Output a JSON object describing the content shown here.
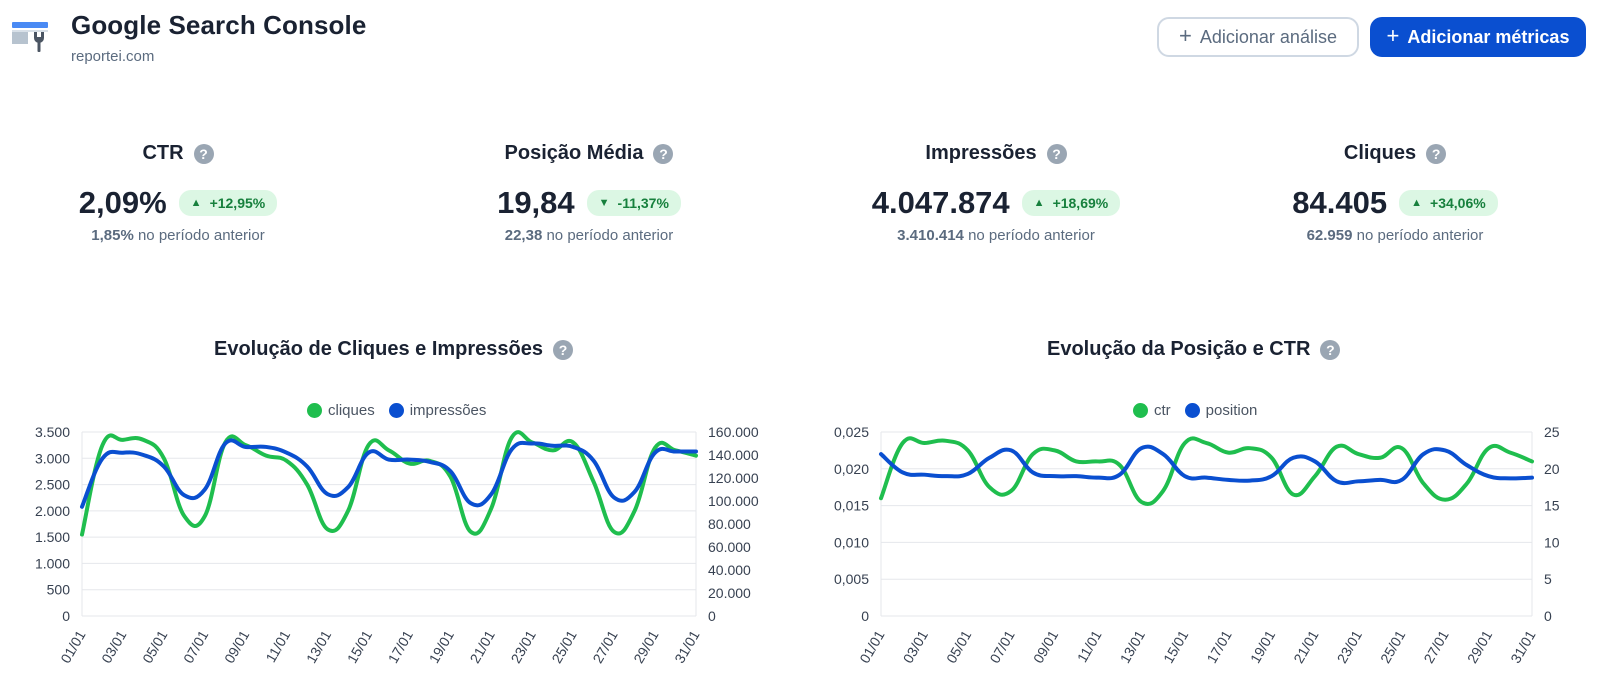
{
  "header": {
    "title": "Google Search Console",
    "subtitle": "reportei.com",
    "btn_analysis": "Adicionar análise",
    "btn_metrics": "Adicionar métricas",
    "plus": "+"
  },
  "help_glyph": "?",
  "kpis": [
    {
      "title": "CTR",
      "value": "2,09%",
      "delta": "+12,95%",
      "direction": "up",
      "prev_value": "1,85%",
      "prev_label": "no período anterior"
    },
    {
      "title": "Posição Média",
      "value": "19,84",
      "delta": "-11,37%",
      "direction": "down",
      "prev_value": "22,38",
      "prev_label": "no período anterior"
    },
    {
      "title": "Impressões",
      "value": "4.047.874",
      "delta": "+18,69%",
      "direction": "up",
      "prev_value": "3.410.414",
      "prev_label": "no período anterior"
    },
    {
      "title": "Cliques",
      "value": "84.405",
      "delta": "+34,06%",
      "direction": "up",
      "prev_value": "62.959",
      "prev_label": "no período anterior"
    }
  ],
  "arrows": {
    "up": "▲",
    "down": "▼"
  },
  "colors": {
    "green": "#1fbe4e",
    "blue": "#0a4fd0",
    "primary": "#0a4fd0",
    "badge_bg": "#dcf7e4",
    "badge_fg": "#17803d"
  },
  "chart_data": [
    {
      "type": "line",
      "title": "Evolução de Cliques e Impressões",
      "legend_position": "top-center",
      "grid": true,
      "x": [
        "01/01",
        "02/01",
        "03/01",
        "04/01",
        "05/01",
        "06/01",
        "07/01",
        "08/01",
        "09/01",
        "10/01",
        "11/01",
        "12/01",
        "13/01",
        "14/01",
        "15/01",
        "16/01",
        "17/01",
        "18/01",
        "19/01",
        "20/01",
        "21/01",
        "22/01",
        "23/01",
        "24/01",
        "25/01",
        "26/01",
        "27/01",
        "28/01",
        "29/01",
        "30/01",
        "31/01"
      ],
      "x_tick_labels": [
        "01/01",
        "03/01",
        "05/01",
        "07/01",
        "09/01",
        "11/01",
        "13/01",
        "15/01",
        "17/01",
        "19/01",
        "21/01",
        "23/01",
        "25/01",
        "27/01",
        "29/01",
        "31/01"
      ],
      "y_left": {
        "min": 0,
        "max": 3500,
        "ticks": [
          "0",
          "500",
          "1.000",
          "1.500",
          "2.000",
          "2.500",
          "3.000",
          "3.500"
        ],
        "tick_values": [
          0,
          500,
          1000,
          1500,
          2000,
          2500,
          3000,
          3500
        ]
      },
      "y_right": {
        "min": 0,
        "max": 160000,
        "ticks": [
          "0",
          "20.000",
          "40.000",
          "60.000",
          "80.000",
          "100.000",
          "120.000",
          "140.000",
          "160.000"
        ],
        "tick_values": [
          0,
          20000,
          40000,
          60000,
          80000,
          100000,
          120000,
          140000,
          160000
        ]
      },
      "series": [
        {
          "name": "cliques",
          "axis": "left",
          "color": "#1fbe4e",
          "values": [
            1550,
            3250,
            3350,
            3350,
            3000,
            1900,
            1900,
            3300,
            3250,
            3050,
            2950,
            2500,
            1650,
            2000,
            3250,
            3150,
            2900,
            2950,
            2650,
            1600,
            2050,
            3400,
            3300,
            3150,
            3300,
            2550,
            1600,
            2000,
            3200,
            3150,
            3050
          ]
        },
        {
          "name": "impressões",
          "axis": "right",
          "color": "#0a4fd0",
          "values": [
            95000,
            137000,
            142000,
            140000,
            130000,
            105000,
            110000,
            150000,
            147000,
            147000,
            142000,
            130000,
            106000,
            112000,
            142000,
            136000,
            136000,
            134000,
            126000,
            98000,
            106000,
            145000,
            150000,
            148000,
            147000,
            135000,
            103000,
            108000,
            142000,
            143000,
            143000
          ]
        }
      ]
    },
    {
      "type": "line",
      "title": "Evolução da Posição e CTR",
      "legend_position": "top-center",
      "grid": true,
      "x": [
        "01/01",
        "02/01",
        "03/01",
        "04/01",
        "05/01",
        "06/01",
        "07/01",
        "08/01",
        "09/01",
        "10/01",
        "11/01",
        "12/01",
        "13/01",
        "14/01",
        "15/01",
        "16/01",
        "17/01",
        "18/01",
        "19/01",
        "20/01",
        "21/01",
        "22/01",
        "23/01",
        "24/01",
        "25/01",
        "26/01",
        "27/01",
        "28/01",
        "29/01",
        "30/01",
        "31/01"
      ],
      "x_tick_labels": [
        "01/01",
        "03/01",
        "05/01",
        "07/01",
        "09/01",
        "11/01",
        "13/01",
        "15/01",
        "17/01",
        "19/01",
        "21/01",
        "23/01",
        "25/01",
        "27/01",
        "29/01",
        "31/01"
      ],
      "y_left": {
        "min": 0,
        "max": 0.025,
        "ticks": [
          "0",
          "0,005",
          "0,010",
          "0,015",
          "0,020",
          "0,025"
        ],
        "tick_values": [
          0,
          0.005,
          0.01,
          0.015,
          0.02,
          0.025
        ]
      },
      "y_right": {
        "min": 0,
        "max": 25,
        "ticks": [
          "0",
          "5",
          "10",
          "15",
          "20",
          "25"
        ],
        "tick_values": [
          0,
          5,
          10,
          15,
          20,
          25
        ]
      },
      "series": [
        {
          "name": "ctr",
          "axis": "left",
          "color": "#1fbe4e",
          "values": [
            0.016,
            0.0235,
            0.0235,
            0.0238,
            0.0225,
            0.0175,
            0.017,
            0.022,
            0.0225,
            0.021,
            0.021,
            0.0205,
            0.0155,
            0.017,
            0.0235,
            0.0235,
            0.0222,
            0.0228,
            0.0215,
            0.0165,
            0.019,
            0.023,
            0.022,
            0.0215,
            0.0228,
            0.018,
            0.0158,
            0.018,
            0.0228,
            0.0222,
            0.021
          ]
        },
        {
          "name": "position",
          "axis": "right",
          "color": "#0a4fd0",
          "values": [
            22,
            19.5,
            19.2,
            19.0,
            19.3,
            21.5,
            22.5,
            19.5,
            19.0,
            19.0,
            18.8,
            19.2,
            22.8,
            22.0,
            19.0,
            18.8,
            18.5,
            18.4,
            19.0,
            21.5,
            21.0,
            18.3,
            18.3,
            18.5,
            18.5,
            22.0,
            22.5,
            20.5,
            19.0,
            18.7,
            18.8
          ]
        }
      ]
    }
  ]
}
